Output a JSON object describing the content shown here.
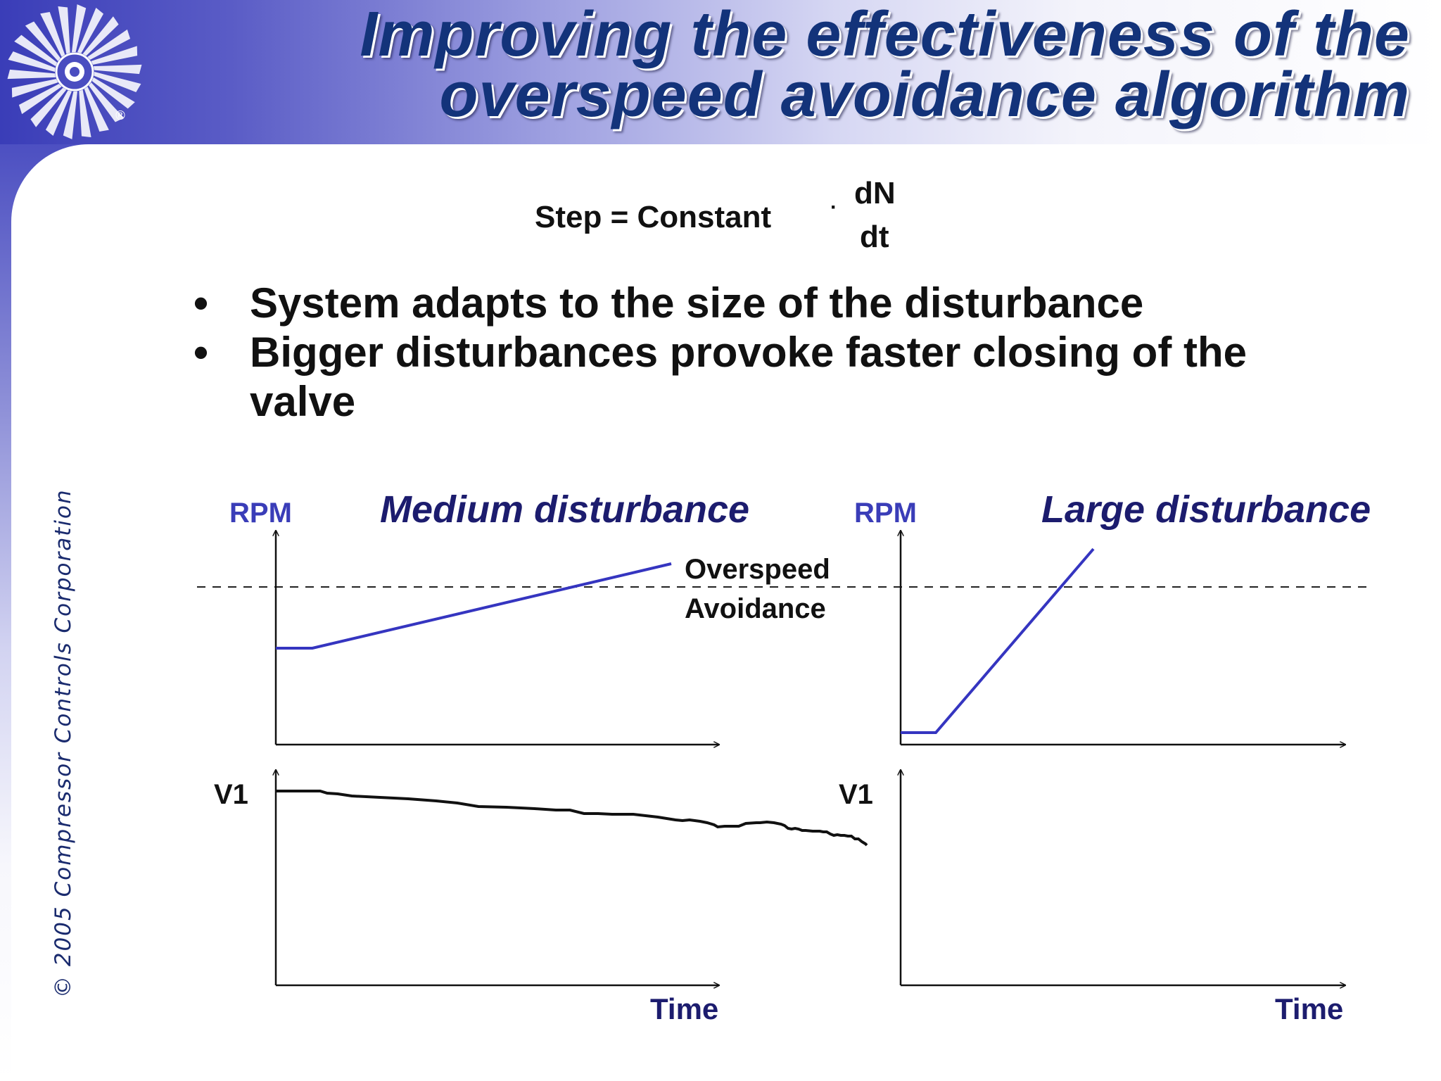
{
  "header": {
    "title_line1": "Improving the effectiveness of the",
    "title_line2": "overspeed avoidance algorithm"
  },
  "sidebar": {
    "copyright": "© 2005  Compressor Controls Corporation"
  },
  "formula": {
    "lhs": "Step =  Constant",
    "dot": "·",
    "numerator": "dN",
    "denominator": "dt"
  },
  "bullets": [
    "System adapts to the size of the disturbance",
    "Bigger disturbances provoke faster closing of the valve"
  ],
  "diagrams": {
    "medium": {
      "title": "Medium disturbance",
      "rpm_label": "RPM",
      "v1_label": "V1",
      "time_label": "Time"
    },
    "large": {
      "title": "Large disturbance",
      "rpm_label": "RPM",
      "v1_label": "V1",
      "time_label": "Time"
    },
    "threshold_label_line1": "Overspeed",
    "threshold_label_line2": "Avoidance"
  },
  "colors": {
    "accent": "#3a3db8",
    "title_text": "#13337a",
    "rpm_line": "#3535c0",
    "diagram_title": "#1c1c6e"
  },
  "icons": {
    "logo": "compressor-turbine-logo-icon"
  }
}
